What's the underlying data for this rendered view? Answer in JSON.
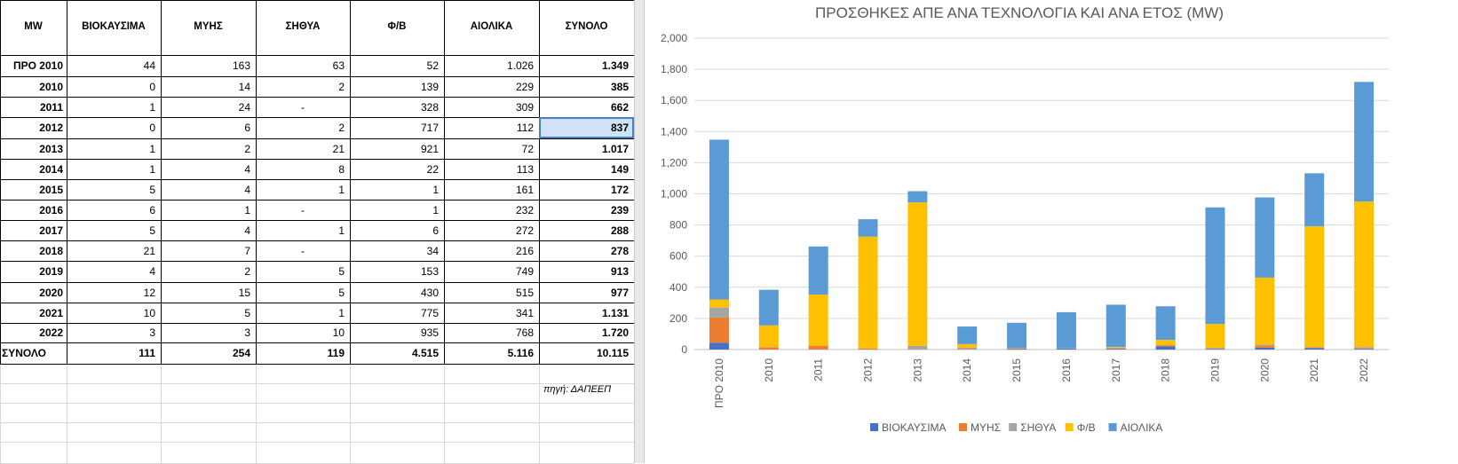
{
  "table": {
    "columns": [
      "MW",
      "ΒΙΟΚΑΥΣΙΜΑ",
      "ΜΥΗΣ",
      "ΣΗΘΥΑ",
      "Φ/Β",
      "ΑΙΟΛΙΚΑ",
      "ΣΥΝΟΛΟ"
    ],
    "rows": [
      [
        "ΠΡΟ 2010",
        "44",
        "163",
        "63",
        "52",
        "1.026",
        "1.349"
      ],
      [
        "2010",
        "0",
        "14",
        "2",
        "139",
        "229",
        "385"
      ],
      [
        "2011",
        "1",
        "24",
        "-",
        "328",
        "309",
        "662"
      ],
      [
        "2012",
        "0",
        "6",
        "2",
        "717",
        "112",
        "837"
      ],
      [
        "2013",
        "1",
        "2",
        "21",
        "921",
        "72",
        "1.017"
      ],
      [
        "2014",
        "1",
        "4",
        "8",
        "22",
        "113",
        "149"
      ],
      [
        "2015",
        "5",
        "4",
        "1",
        "1",
        "161",
        "172"
      ],
      [
        "2016",
        "6",
        "1",
        "-",
        "1",
        "232",
        "239"
      ],
      [
        "2017",
        "5",
        "4",
        "1",
        "6",
        "272",
        "288"
      ],
      [
        "2018",
        "21",
        "7",
        "-",
        "34",
        "216",
        "278"
      ],
      [
        "2019",
        "4",
        "2",
        "5",
        "153",
        "749",
        "913"
      ],
      [
        "2020",
        "12",
        "15",
        "5",
        "430",
        "515",
        "977"
      ],
      [
        "2021",
        "10",
        "5",
        "1",
        "775",
        "341",
        "1.131"
      ],
      [
        "2022",
        "3",
        "3",
        "10",
        "935",
        "768",
        "1.720"
      ]
    ],
    "total_row": [
      "ΣΥΝΟΛΟ",
      "111",
      "254",
      "119",
      "4.515",
      "5.116",
      "10.115"
    ],
    "source": "πηγή: ΔΑΠΕΕΠ"
  },
  "chart_data": {
    "type": "bar",
    "stacked": true,
    "title": "ΠΡΟΣΘΗΚΕΣ ΑΠΕ ΑΝΑ ΤΕΧΝΟΛΟΓΙΑ ΚΑΙ ΑΝΑ ΕΤΟΣ (MW)",
    "categories": [
      "ΠΡΟ 2010",
      "2010",
      "2011",
      "2012",
      "2013",
      "2014",
      "2015",
      "2016",
      "2017",
      "2018",
      "2019",
      "2020",
      "2021",
      "2022"
    ],
    "series": [
      {
        "name": "ΒΙΟΚΑΥΣΙΜΑ",
        "color": "#4472c4",
        "values": [
          44,
          0,
          1,
          0,
          1,
          1,
          5,
          6,
          5,
          21,
          4,
          12,
          10,
          3
        ]
      },
      {
        "name": "ΜΥΗΣ",
        "color": "#ed7d31",
        "values": [
          163,
          14,
          24,
          6,
          2,
          4,
          4,
          1,
          4,
          7,
          2,
          15,
          5,
          3
        ]
      },
      {
        "name": "ΣΗΘΥΑ",
        "color": "#a5a5a5",
        "values": [
          63,
          2,
          0,
          2,
          21,
          8,
          1,
          0,
          1,
          0,
          5,
          5,
          1,
          10
        ]
      },
      {
        "name": "Φ/Β",
        "color": "#ffc000",
        "values": [
          52,
          139,
          328,
          717,
          921,
          22,
          1,
          1,
          6,
          34,
          153,
          430,
          775,
          935
        ]
      },
      {
        "name": "ΑΙΟΛΙΚΑ",
        "color": "#5b9bd5",
        "values": [
          1026,
          229,
          309,
          112,
          72,
          113,
          161,
          232,
          272,
          216,
          749,
          515,
          341,
          768
        ]
      }
    ],
    "yticks": [
      "0",
      "200",
      "400",
      "600",
      "800",
      "1,000",
      "1,200",
      "1,400",
      "1,600",
      "1,800",
      "2,000"
    ],
    "ylim": [
      0,
      2000
    ],
    "grid": true,
    "legend": "bottom"
  }
}
